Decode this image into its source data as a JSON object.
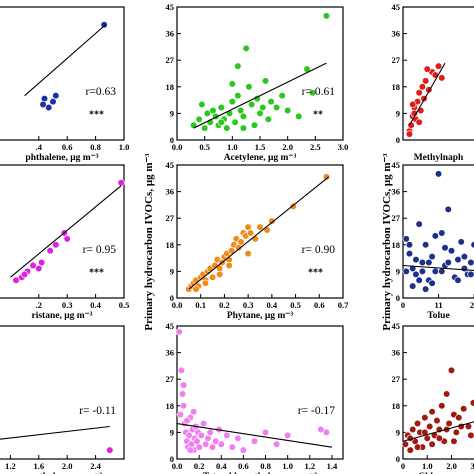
{
  "y_axis_label": "Primary hydrocarbon IVOCs, μg m⁻³",
  "colors": {
    "blue": "#1a2fa8",
    "green": "#28c81f",
    "red": "#e01c1c",
    "magenta": "#e020e0",
    "orange": "#f08a1c",
    "navy": "#1f2f8c",
    "pink": "#f07ef0",
    "darkred": "#a01a10"
  },
  "chart_data": [
    {
      "type": "scatter",
      "xlabel": "phthalene, μg m⁻³",
      "xlim": [
        0,
        1.0
      ],
      "ylim": [
        0,
        45
      ],
      "xticks": [
        0.4,
        0.6,
        0.8,
        1.0
      ],
      "xtick_labels": [
        ".4",
        "0.6",
        "0.8",
        "1.0"
      ],
      "yticks": [],
      "ytick_labels": [],
      "r_text": "r=0.63",
      "sig": "***",
      "color": "#1a2fa8",
      "points": [
        [
          0.44,
          14
        ],
        [
          0.5,
          13
        ],
        [
          0.47,
          11
        ],
        [
          0.43,
          12
        ],
        [
          0.52,
          15
        ],
        [
          0.86,
          39
        ]
      ],
      "fit": [
        [
          0.3,
          15
        ],
        [
          0.87,
          39
        ]
      ]
    },
    {
      "type": "scatter",
      "xlabel": "Acetylene, μg m⁻³",
      "xlim": [
        0,
        3.0
      ],
      "ylim": [
        0,
        45
      ],
      "xticks": [
        0,
        0.5,
        1.0,
        1.5,
        2.0,
        2.5,
        3.0
      ],
      "xtick_labels": [
        "0.0",
        "0.5",
        "1.0",
        "1.5",
        "2.0",
        "2.5",
        "3.0"
      ],
      "yticks": [
        0,
        9,
        18,
        27,
        36,
        45
      ],
      "ytick_labels": [
        "0",
        "9",
        "18",
        "27",
        "36",
        "45"
      ],
      "r_text": "r= 0.61",
      "sig": "**",
      "color": "#28c81f",
      "points": [
        [
          0.3,
          5
        ],
        [
          0.4,
          7
        ],
        [
          0.5,
          4
        ],
        [
          0.55,
          9
        ],
        [
          0.6,
          6
        ],
        [
          0.7,
          8
        ],
        [
          0.75,
          5
        ],
        [
          0.8,
          11
        ],
        [
          0.85,
          7
        ],
        [
          0.9,
          4
        ],
        [
          0.95,
          9
        ],
        [
          1.0,
          13
        ],
        [
          1.05,
          6
        ],
        [
          1.1,
          15
        ],
        [
          1.15,
          10
        ],
        [
          1.2,
          8
        ],
        [
          1.25,
          31
        ],
        [
          1.3,
          18
        ],
        [
          1.35,
          12
        ],
        [
          1.4,
          5
        ],
        [
          1.45,
          14
        ],
        [
          1.5,
          9
        ],
        [
          1.55,
          11
        ],
        [
          1.6,
          20
        ],
        [
          1.65,
          7
        ],
        [
          1.7,
          13
        ],
        [
          1.8,
          11
        ],
        [
          1.9,
          15
        ],
        [
          2.0,
          10
        ],
        [
          2.2,
          8
        ],
        [
          2.35,
          24
        ],
        [
          2.45,
          16
        ],
        [
          2.7,
          42
        ],
        [
          0.45,
          12
        ],
        [
          0.65,
          10
        ],
        [
          1.0,
          19
        ],
        [
          1.1,
          25
        ],
        [
          0.8,
          6
        ],
        [
          1.2,
          4
        ]
      ],
      "fit": [
        [
          0.3,
          4
        ],
        [
          2.7,
          26
        ]
      ]
    },
    {
      "type": "scatter",
      "xlabel": "Methylnaph",
      "xlim": [
        0,
        3.0
      ],
      "ylim": [
        0,
        45
      ],
      "xticks": [],
      "xtick_labels": [],
      "yticks": [
        0,
        9,
        18,
        27,
        36,
        45
      ],
      "ytick_labels": [
        "0",
        "9",
        "18",
        "27",
        "36",
        "45"
      ],
      "r_text": "",
      "sig": "",
      "color": "#e01c1c",
      "points": [
        [
          0.2,
          3
        ],
        [
          0.25,
          5
        ],
        [
          0.3,
          8
        ],
        [
          0.35,
          11
        ],
        [
          0.4,
          7
        ],
        [
          0.45,
          13
        ],
        [
          0.5,
          16
        ],
        [
          0.55,
          10
        ],
        [
          0.6,
          18
        ],
        [
          0.7,
          20
        ],
        [
          0.8,
          17
        ],
        [
          0.9,
          23
        ],
        [
          1.0,
          22
        ],
        [
          1.1,
          25
        ],
        [
          1.2,
          21
        ],
        [
          0.3,
          12
        ],
        [
          0.5,
          6
        ],
        [
          0.65,
          14
        ],
        [
          0.75,
          24
        ],
        [
          0.2,
          2
        ],
        [
          0.35,
          9
        ]
      ],
      "fit": [
        [
          0.2,
          5
        ],
        [
          1.3,
          26
        ]
      ]
    },
    {
      "type": "scatter",
      "xlabel": "ristane, μg m⁻³",
      "xlim": [
        0,
        0.5
      ],
      "ylim": [
        0,
        45
      ],
      "xticks": [
        0.2,
        0.3,
        0.4,
        0.5
      ],
      "xtick_labels": [
        ".2",
        "0.3",
        "0.4",
        "0.5"
      ],
      "yticks": [],
      "ytick_labels": [],
      "r_text": "r= 0.95",
      "sig": "***",
      "color": "#e020e0",
      "points": [
        [
          0.12,
          6
        ],
        [
          0.14,
          7
        ],
        [
          0.16,
          9
        ],
        [
          0.18,
          11
        ],
        [
          0.2,
          10
        ],
        [
          0.21,
          12
        ],
        [
          0.24,
          16
        ],
        [
          0.26,
          18
        ],
        [
          0.29,
          22
        ],
        [
          0.3,
          20
        ],
        [
          0.49,
          39
        ],
        [
          0.15,
          8
        ]
      ],
      "fit": [
        [
          0.1,
          7
        ],
        [
          0.49,
          38
        ]
      ]
    },
    {
      "type": "scatter",
      "xlabel": "Phytane, μg m⁻³",
      "xlim": [
        0,
        0.7
      ],
      "ylim": [
        0,
        45
      ],
      "xticks": [
        0,
        0.1,
        0.2,
        0.3,
        0.4,
        0.5,
        0.6,
        0.7
      ],
      "xtick_labels": [
        "0.0",
        "0.1",
        "0.2",
        "0.3",
        "0.4",
        "0.5",
        "0.6",
        "0.7"
      ],
      "yticks": [
        0,
        9,
        18,
        27,
        36,
        45
      ],
      "ytick_labels": [
        "0",
        "9",
        "18",
        "27",
        "36",
        "45"
      ],
      "r_text": "r= 0.90",
      "sig": "***",
      "color": "#f08a1c",
      "points": [
        [
          0.05,
          3
        ],
        [
          0.06,
          4
        ],
        [
          0.07,
          5
        ],
        [
          0.08,
          6
        ],
        [
          0.09,
          4
        ],
        [
          0.1,
          7
        ],
        [
          0.11,
          8
        ],
        [
          0.12,
          6
        ],
        [
          0.13,
          9
        ],
        [
          0.14,
          10
        ],
        [
          0.15,
          7
        ],
        [
          0.16,
          11
        ],
        [
          0.17,
          13
        ],
        [
          0.18,
          10
        ],
        [
          0.19,
          12
        ],
        [
          0.2,
          14
        ],
        [
          0.21,
          15
        ],
        [
          0.22,
          13
        ],
        [
          0.23,
          16
        ],
        [
          0.24,
          18
        ],
        [
          0.25,
          20
        ],
        [
          0.26,
          17
        ],
        [
          0.27,
          19
        ],
        [
          0.28,
          22
        ],
        [
          0.29,
          21
        ],
        [
          0.3,
          24
        ],
        [
          0.31,
          22
        ],
        [
          0.33,
          20
        ],
        [
          0.35,
          24
        ],
        [
          0.38,
          23
        ],
        [
          0.4,
          26
        ],
        [
          0.49,
          31
        ],
        [
          0.63,
          41
        ],
        [
          0.08,
          3
        ],
        [
          0.12,
          5
        ],
        [
          0.18,
          8
        ],
        [
          0.22,
          11
        ],
        [
          0.3,
          15
        ]
      ],
      "fit": [
        [
          0.05,
          3
        ],
        [
          0.64,
          41
        ]
      ]
    },
    {
      "type": "scatter",
      "xlabel": "Tolue",
      "xlim": [
        0,
        30
      ],
      "ylim": [
        0,
        45
      ],
      "xticks": [
        0,
        11,
        22
      ],
      "xtick_labels": [
        "0",
        "11",
        "22"
      ],
      "yticks": [
        0,
        9,
        18,
        27,
        36,
        45
      ],
      "ytick_labels": [
        "0",
        "9",
        "18",
        "27",
        "36",
        "45"
      ],
      "r_text": "",
      "sig": "",
      "color": "#1f2f8c",
      "points": [
        [
          1,
          20
        ],
        [
          2,
          15
        ],
        [
          3,
          10
        ],
        [
          4,
          8
        ],
        [
          5,
          25
        ],
        [
          6,
          12
        ],
        [
          7,
          18
        ],
        [
          8,
          6
        ],
        [
          9,
          14
        ],
        [
          10,
          9
        ],
        [
          11,
          42
        ],
        [
          12,
          22
        ],
        [
          13,
          11
        ],
        [
          14,
          30
        ],
        [
          15,
          16
        ],
        [
          16,
          7
        ],
        [
          17,
          13
        ],
        [
          18,
          19
        ],
        [
          19,
          10
        ],
        [
          20,
          8
        ],
        [
          21,
          12
        ],
        [
          22,
          18
        ],
        [
          23,
          7
        ],
        [
          24,
          11
        ],
        [
          3,
          4
        ],
        [
          5,
          6
        ],
        [
          7,
          3
        ],
        [
          9,
          5
        ],
        [
          12,
          9
        ],
        [
          14,
          12
        ],
        [
          2,
          18
        ],
        [
          6,
          9
        ],
        [
          8,
          12
        ],
        [
          13,
          17
        ],
        [
          17,
          6
        ],
        [
          19,
          14
        ],
        [
          21,
          8
        ],
        [
          1,
          9
        ],
        [
          4,
          13
        ],
        [
          10,
          21
        ]
      ],
      "fit": [
        [
          0,
          11
        ],
        [
          26,
          9
        ]
      ]
    },
    {
      "type": "scatter",
      "xlabel": "oroethylene, μg m⁻³",
      "xlim": [
        0.8,
        2.8
      ],
      "ylim": [
        0,
        45
      ],
      "xticks": [
        1.2,
        1.6,
        2.0,
        2.4
      ],
      "xtick_labels": [
        "1.2",
        "1.6",
        "2.0",
        "2.4"
      ],
      "yticks": [],
      "ytick_labels": [],
      "r_text": "r= -0.11",
      "sig": "",
      "color": "#e020e0",
      "points": [
        [
          0.85,
          8
        ],
        [
          0.9,
          5
        ],
        [
          2.6,
          3
        ]
      ],
      "fit": [
        [
          0.8,
          6
        ],
        [
          2.6,
          11
        ]
      ]
    },
    {
      "type": "scatter",
      "xlabel": "Tetrachloroethylene, μg m⁻³",
      "xlim": [
        0,
        1.5
      ],
      "ylim": [
        0,
        45
      ],
      "xticks": [
        0,
        0.2,
        0.4,
        0.6,
        0.8,
        1.0,
        1.2,
        1.4
      ],
      "xtick_labels": [
        "0.0",
        "0.2",
        "0.4",
        "0.6",
        "0.8",
        "1.0",
        "1.2",
        "1.4"
      ],
      "yticks": [
        0,
        9,
        18,
        27,
        36,
        45
      ],
      "ytick_labels": [
        "0",
        "9",
        "18",
        "27",
        "36",
        "45"
      ],
      "r_text": "r= -0.17",
      "sig": "",
      "color": "#f07ef0",
      "points": [
        [
          0.02,
          43
        ],
        [
          0.04,
          30
        ],
        [
          0.05,
          22
        ],
        [
          0.06,
          18
        ],
        [
          0.07,
          12
        ],
        [
          0.08,
          9
        ],
        [
          0.09,
          6
        ],
        [
          0.1,
          4
        ],
        [
          0.11,
          8
        ],
        [
          0.12,
          14
        ],
        [
          0.13,
          5
        ],
        [
          0.14,
          10
        ],
        [
          0.15,
          3
        ],
        [
          0.16,
          7
        ],
        [
          0.17,
          11
        ],
        [
          0.18,
          6
        ],
        [
          0.19,
          9
        ],
        [
          0.2,
          4
        ],
        [
          0.22,
          8
        ],
        [
          0.24,
          12
        ],
        [
          0.26,
          5
        ],
        [
          0.28,
          7
        ],
        [
          0.3,
          9
        ],
        [
          0.32,
          4
        ],
        [
          0.35,
          6
        ],
        [
          0.38,
          10
        ],
        [
          0.4,
          5
        ],
        [
          0.45,
          8
        ],
        [
          0.5,
          4
        ],
        [
          0.55,
          7
        ],
        [
          0.6,
          3
        ],
        [
          0.7,
          6
        ],
        [
          0.8,
          9
        ],
        [
          0.9,
          5
        ],
        [
          1.0,
          8
        ],
        [
          1.3,
          10
        ],
        [
          1.35,
          9
        ],
        [
          0.03,
          15
        ],
        [
          0.06,
          25
        ],
        [
          0.09,
          13
        ],
        [
          0.12,
          3
        ],
        [
          0.15,
          16
        ]
      ],
      "fit": [
        [
          0.0,
          12
        ],
        [
          1.4,
          4
        ]
      ]
    },
    {
      "type": "scatter",
      "xlabel": "Chlorome",
      "xlim": [
        0,
        4.0
      ],
      "ylim": [
        0,
        45
      ],
      "xticks": [
        0,
        1.0,
        2.0,
        3.0
      ],
      "xtick_labels": [
        "0",
        "1.0",
        "2.0",
        "3.0"
      ],
      "yticks": [
        0,
        9,
        18,
        27,
        36,
        45
      ],
      "ytick_labels": [
        "0",
        "9",
        "18",
        "27",
        "36",
        "45"
      ],
      "r_text": "",
      "sig": "",
      "color": "#a01a10",
      "points": [
        [
          0.1,
          5
        ],
        [
          0.2,
          8
        ],
        [
          0.3,
          3
        ],
        [
          0.4,
          10
        ],
        [
          0.5,
          6
        ],
        [
          0.6,
          12
        ],
        [
          0.7,
          9
        ],
        [
          0.8,
          4
        ],
        [
          0.9,
          14
        ],
        [
          1.0,
          7
        ],
        [
          1.1,
          11
        ],
        [
          1.2,
          16
        ],
        [
          1.3,
          8
        ],
        [
          1.4,
          13
        ],
        [
          1.5,
          10
        ],
        [
          1.6,
          18
        ],
        [
          1.7,
          6
        ],
        [
          1.8,
          22
        ],
        [
          1.9,
          12
        ],
        [
          2.0,
          30
        ],
        [
          2.1,
          15
        ],
        [
          2.2,
          9
        ],
        [
          2.3,
          14
        ],
        [
          2.5,
          17
        ],
        [
          2.7,
          11
        ],
        [
          2.9,
          19
        ],
        [
          3.1,
          13
        ],
        [
          3.3,
          16
        ],
        [
          3.5,
          20
        ],
        [
          3.7,
          12
        ],
        [
          0.3,
          7
        ],
        [
          0.6,
          4
        ],
        [
          0.9,
          9
        ],
        [
          1.2,
          5
        ],
        [
          1.5,
          7
        ],
        [
          1.8,
          10
        ],
        [
          2.1,
          6
        ],
        [
          2.4,
          11
        ],
        [
          2.8,
          8
        ],
        [
          3.2,
          10
        ]
      ],
      "fit": [
        [
          0.0,
          6
        ],
        [
          4.0,
          15
        ]
      ]
    }
  ]
}
